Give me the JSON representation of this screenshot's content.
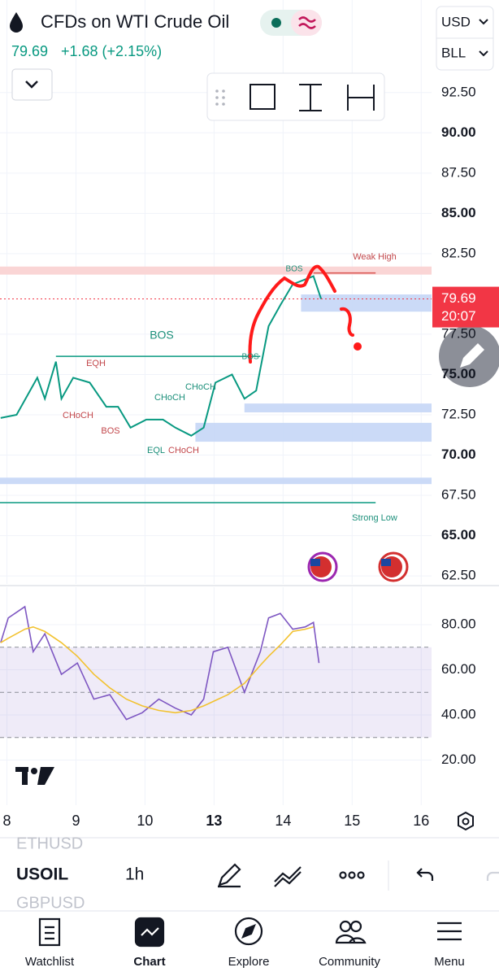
{
  "header": {
    "title": "CFDs on WTI Crude Oil",
    "price": "79.69",
    "change": "+1.68 (+2.15%)",
    "currency": "USD",
    "unit": "BLL"
  },
  "chart_data": [
    {
      "type": "line",
      "x": [
        -0.09,
        0.14,
        0.44,
        0.55,
        0.71,
        0.79,
        0.96,
        1.2,
        1.44,
        1.61,
        1.79,
        2.02,
        2.26,
        2.44,
        2.67,
        2.85,
        3.02,
        3.26,
        3.44,
        3.61,
        3.79,
        3.96,
        4.14,
        4.32,
        4.44,
        4.55
      ],
      "series": [
        {
          "color": "#089981",
          "values": [
            72.3,
            72.5,
            74.8,
            73.5,
            75.8,
            73.5,
            74.8,
            74.5,
            73.0,
            73.0,
            71.7,
            72.2,
            72.2,
            71.7,
            71.2,
            71.7,
            74.5,
            75.0,
            73.5,
            74.0,
            78.0,
            79.3,
            80.6,
            80.9,
            81.1,
            79.69
          ]
        }
      ],
      "xlim": [
        -0.1,
        6.15
      ],
      "ylim": [
        62,
        93.7
      ],
      "yticks": [
        {
          "value": 92.5,
          "label": "92.50"
        },
        {
          "value": 90,
          "label": "90.00"
        },
        {
          "value": 87.5,
          "label": "87.50"
        },
        {
          "value": 85,
          "label": "85.00"
        },
        {
          "value": 82.5,
          "label": "82.50"
        },
        {
          "value": 77.5,
          "label": "77.50"
        },
        {
          "value": 75,
          "label": "75.00"
        },
        {
          "value": 72.5,
          "label": "72.50"
        },
        {
          "value": 70,
          "label": "70.00"
        },
        {
          "value": 67.5,
          "label": "67.50"
        },
        {
          "value": 65,
          "label": "65.00"
        },
        {
          "value": 62.5,
          "label": "62.50"
        }
      ],
      "grid": true,
      "last": 79.69,
      "countdown": "20:07",
      "last_color": "#f23645",
      "zones": [
        {
          "from": 81.2,
          "to": 81.7,
          "x": -0.1,
          "color": "#f9d0d0"
        },
        {
          "from": 78.9,
          "to": 79.97,
          "x": 4.26,
          "color": "#c5d6f6"
        },
        {
          "from": 72.65,
          "to": 73.2,
          "x": 3.44,
          "color": "#c5d6f6"
        },
        {
          "from": 70.83,
          "to": 72.0,
          "x": 2.73,
          "color": "#c5d6f6"
        },
        {
          "from": 68.2,
          "to": 68.6,
          "x": -0.1,
          "color": "#c5d6f6"
        }
      ],
      "lines": [
        {
          "value": 67.05,
          "x": [
            -0.1,
            5.34
          ],
          "color": "#089981"
        },
        {
          "value": 81.3,
          "x": [
            4.44,
            5.34
          ],
          "color": "#d9534f"
        },
        {
          "value": 76.13,
          "x": [
            0.71,
            3.67
          ],
          "color": "#089981"
        }
      ],
      "annotations": [
        "Weak High",
        "BOS",
        "BOS",
        "BOS",
        "EQH",
        "CHoCH",
        "BOS",
        "CHoCH",
        "CHoCH",
        "EQL",
        "CHoCH",
        "Strong Low"
      ]
    },
    {
      "type": "line",
      "x": [
        -0.09,
        0.02,
        0.26,
        0.38,
        0.55,
        0.79,
        1.02,
        1.26,
        1.49,
        1.73,
        1.96,
        2.2,
        2.44,
        2.67,
        2.85,
        2.99,
        3.2,
        3.44,
        3.67,
        3.79,
        3.96,
        4.14,
        4.32,
        4.44,
        4.52
      ],
      "series": [
        {
          "color": "#7e57c2",
          "values": [
            72,
            83,
            88,
            68,
            76,
            58,
            63,
            47,
            49,
            38,
            41,
            47,
            43,
            40,
            47,
            68,
            70,
            50,
            68,
            83,
            85,
            78,
            79,
            81,
            63
          ]
        },
        {
          "color": "#f2c230",
          "values": [
            72,
            74,
            78,
            79,
            77,
            72,
            66,
            58,
            52,
            47,
            44,
            42,
            41,
            42,
            44,
            46,
            49,
            54,
            62,
            66,
            71,
            77,
            78,
            79,
            null
          ]
        }
      ],
      "xlim": [
        -0.1,
        6.15
      ],
      "ylim": [
        0,
        96.6
      ],
      "yticks": [
        {
          "value": 80,
          "label": "80.00"
        },
        {
          "value": 60,
          "label": "60.00"
        },
        {
          "value": 40,
          "label": "40.00"
        },
        {
          "value": 20,
          "label": "20.00"
        }
      ],
      "xticks": [
        {
          "value": 0,
          "label": "8"
        },
        {
          "value": 1,
          "label": "9"
        },
        {
          "value": 2,
          "label": "10"
        },
        {
          "value": 3,
          "label": "13"
        },
        {
          "value": 4,
          "label": "14"
        },
        {
          "value": 5,
          "label": "15"
        },
        {
          "value": 6,
          "label": "16"
        }
      ],
      "levels": [
        70,
        50,
        30
      ],
      "grid": true
    }
  ],
  "toolbar": {
    "symbols": [
      "ETHUSD",
      "USOIL",
      "GBPUSD"
    ],
    "interval": "1h"
  },
  "nav": [
    "Watchlist",
    "Chart",
    "Explore",
    "Community",
    "Menu"
  ]
}
